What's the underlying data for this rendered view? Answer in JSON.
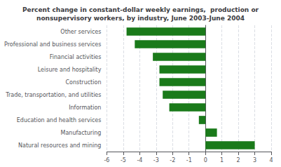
{
  "chart_data": {
    "type": "bar",
    "orientation": "horizontal",
    "title": "Percent change in constant-dollar weekly earnings,  production or\nnonsupervisory workers, by industry, June 2003-June 2004",
    "categories": [
      "Natural resources and mining",
      "Manufacturing",
      "Education and health services",
      "Information",
      "Trade, transportation, and utilities",
      "Construction",
      "Leisure and hospitality",
      "Financial activities",
      "Professional and business services",
      "Other services"
    ],
    "values": [
      3.0,
      0.7,
      -0.4,
      -2.2,
      -2.6,
      -2.8,
      -2.8,
      -3.2,
      -4.3,
      -4.8
    ],
    "color": "#1a7a1a",
    "xlim": [
      -6,
      4
    ],
    "xticks": [
      -6,
      -5,
      -4,
      -3,
      -2,
      -1,
      0,
      1,
      2,
      3,
      4
    ],
    "grid": true
  }
}
